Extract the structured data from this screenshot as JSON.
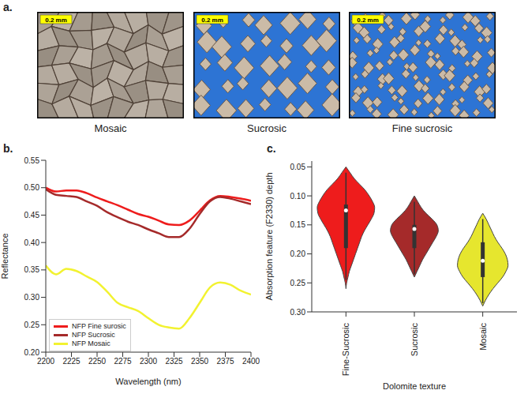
{
  "panel_a": {
    "label": "a.",
    "images": [
      {
        "caption": "Mosaic",
        "scale_bar": "0.2 mm"
      },
      {
        "caption": "Sucrosic",
        "scale_bar": "0.2 mm"
      },
      {
        "caption": "Fine sucrosic",
        "scale_bar": "0.2 mm"
      }
    ]
  },
  "chart_data": [
    {
      "label": "b.",
      "type": "line",
      "x_label": "Wavelength (nm)",
      "y_label": "Reflectance",
      "x": [
        2200,
        2210,
        2220,
        2230,
        2240,
        2250,
        2260,
        2270,
        2280,
        2290,
        2300,
        2310,
        2320,
        2330,
        2340,
        2350,
        2360,
        2370,
        2380,
        2390,
        2400
      ],
      "series": [
        {
          "name": "NFP Fine surosic",
          "color": "#ee1c1c",
          "values": [
            0.5,
            0.493,
            0.495,
            0.495,
            0.49,
            0.482,
            0.475,
            0.468,
            0.46,
            0.452,
            0.447,
            0.44,
            0.433,
            0.432,
            0.44,
            0.458,
            0.477,
            0.485,
            0.483,
            0.48,
            0.476
          ]
        },
        {
          "name": "NFP Sucrosic",
          "color": "#a52a2a",
          "values": [
            0.497,
            0.487,
            0.485,
            0.483,
            0.475,
            0.467,
            0.455,
            0.446,
            0.438,
            0.432,
            0.424,
            0.417,
            0.41,
            0.41,
            0.425,
            0.452,
            0.475,
            0.483,
            0.48,
            0.475,
            0.47
          ]
        },
        {
          "name": "NFP Mosaic",
          "color": "#f2f230",
          "values": [
            0.358,
            0.342,
            0.352,
            0.348,
            0.338,
            0.328,
            0.31,
            0.29,
            0.282,
            0.275,
            0.262,
            0.25,
            0.245,
            0.243,
            0.262,
            0.29,
            0.318,
            0.327,
            0.323,
            0.312,
            0.305
          ]
        }
      ],
      "xlim": [
        2200,
        2400
      ],
      "xticks": [
        2200,
        2225,
        2250,
        2275,
        2300,
        2325,
        2350,
        2375,
        2400
      ],
      "ylim": [
        0.2,
        0.55
      ],
      "yticks": [
        {
          "value": 0.2,
          "label": "0.20"
        },
        {
          "value": 0.25,
          "label": "0.25"
        },
        {
          "value": 0.3,
          "label": "0.30"
        },
        {
          "value": 0.35,
          "label": "0.35"
        },
        {
          "value": 0.4,
          "label": "0.40"
        },
        {
          "value": 0.45,
          "label": "0.45"
        },
        {
          "value": 0.5,
          "label": "0.50"
        },
        {
          "value": 0.55,
          "label": "0.55"
        }
      ],
      "legend": "lower left",
      "grid": false
    },
    {
      "label": "c.",
      "type": "violin",
      "x_label": "Dolomite texture",
      "y_label": "Absorption feature (F2330) depth",
      "categories": [
        "Fine-Sucrosic",
        "Sucrosic",
        "Mosaic"
      ],
      "colors": [
        "#ee1c1c",
        "#a52a2a",
        "#e6e62e"
      ],
      "depth": [
        0.05,
        0.06,
        0.07,
        0.08,
        0.09,
        0.1,
        0.11,
        0.12,
        0.13,
        0.14,
        0.15,
        0.16,
        0.17,
        0.18,
        0.19,
        0.2,
        0.21,
        0.22,
        0.23,
        0.24,
        0.25,
        0.26,
        0.27,
        0.28,
        0.29
      ],
      "density": [
        [
          0,
          0.06,
          0.12,
          0.2,
          0.28,
          0.34,
          0.39,
          0.42,
          0.41,
          0.37,
          0.32,
          0.27,
          0.23,
          0.2,
          0.17,
          0.14,
          0.11,
          0.08,
          0.05,
          0.03,
          0.01,
          0,
          null,
          null,
          null
        ],
        [
          null,
          null,
          null,
          null,
          null,
          0,
          0.05,
          0.1,
          0.17,
          0.26,
          0.33,
          0.35,
          0.32,
          0.27,
          0.22,
          0.17,
          0.12,
          0.08,
          0.04,
          0,
          null,
          null,
          null,
          null,
          null
        ],
        [
          null,
          null,
          null,
          null,
          null,
          null,
          null,
          null,
          0,
          0.05,
          0.09,
          0.13,
          0.17,
          0.22,
          0.28,
          0.33,
          0.36,
          0.37,
          0.34,
          0.29,
          0.22,
          0.15,
          0.09,
          0.04,
          0
        ]
      ],
      "box": [
        {
          "whisker_low": 0.06,
          "q1": 0.115,
          "median": 0.125,
          "q3": 0.19,
          "whisker_high": 0.245
        },
        {
          "whisker_low": 0.11,
          "q1": 0.15,
          "median": 0.157,
          "q3": 0.19,
          "whisker_high": 0.235
        },
        {
          "whisker_low": 0.14,
          "q1": 0.18,
          "median": 0.212,
          "q3": 0.24,
          "whisker_high": 0.285
        }
      ],
      "ylim": [
        0.04,
        0.3
      ],
      "yticks": [
        {
          "value": 0.05,
          "label": "0.05"
        },
        {
          "value": 0.1,
          "label": "0.10"
        },
        {
          "value": 0.15,
          "label": "0.15"
        },
        {
          "value": 0.2,
          "label": "0.20"
        },
        {
          "value": 0.25,
          "label": "0.25"
        },
        {
          "value": 0.3,
          "label": "0.30"
        }
      ],
      "grid": false
    }
  ]
}
